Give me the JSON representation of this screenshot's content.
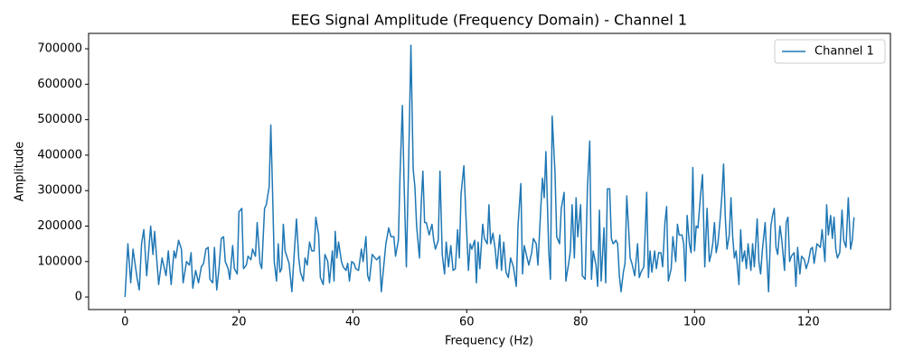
{
  "chart_data": {
    "type": "line",
    "title": "EEG Signal Amplitude (Frequency Domain) - Channel 1",
    "xlabel": "Frequency (Hz)",
    "ylabel": "Amplitude",
    "x": [
      0,
      0.5,
      1.0,
      1.4,
      2.1,
      2.5,
      2.9,
      3.3,
      3.8,
      4.5,
      4.9,
      5.2,
      5.9,
      6.5,
      7.2,
      7.6,
      8.1,
      8.6,
      8.9,
      9.4,
      9.9,
      10.2,
      10.8,
      11.3,
      11.6,
      11.9,
      12.4,
      12.9,
      13.4,
      13.8,
      14.2,
      14.6,
      14.9,
      15.4,
      15.7,
      16.1,
      16.5,
      16.9,
      17.3,
      17.6,
      18.1,
      18.4,
      18.9,
      19.2,
      19.7,
      20.0,
      20.5,
      20.8,
      21.3,
      21.6,
      22.1,
      22.4,
      22.9,
      23.2,
      23.7,
      24.0,
      24.5,
      24.8,
      25.3,
      25.6,
      25.9,
      26.2,
      26.6,
      26.9,
      27.2,
      27.5,
      27.8,
      28.1,
      28.8,
      29.3,
      29.7,
      30.1,
      30.5,
      30.8,
      31.3,
      31.6,
      32.0,
      32.4,
      32.8,
      33.2,
      33.5,
      34.0,
      34.3,
      34.8,
      35.1,
      35.6,
      35.9,
      36.4,
      36.7,
      36.9,
      37.2,
      37.5,
      38.0,
      38.3,
      38.8,
      39.1,
      39.4,
      39.8,
      40.2,
      40.5,
      41.0,
      41.5,
      41.8,
      42.3,
      42.6,
      42.9,
      43.4,
      43.9,
      44.2,
      44.7,
      45.0,
      45.5,
      45.8,
      46.3,
      46.7,
      47.2,
      47.5,
      48.0,
      48.3,
      48.7,
      49.0,
      49.4,
      49.8,
      50.2,
      50.6,
      50.9,
      51.2,
      51.7,
      52.0,
      52.3,
      52.6,
      52.9,
      53.4,
      53.9,
      54.2,
      54.5,
      55.0,
      55.3,
      55.7,
      56.1,
      56.4,
      56.8,
      57.2,
      57.6,
      58.0,
      58.4,
      58.7,
      59.0,
      59.5,
      59.8,
      60.3,
      60.6,
      60.9,
      61.4,
      61.7,
      62.0,
      62.3,
      62.8,
      63.1,
      63.6,
      63.9,
      64.2,
      64.6,
      65.0,
      65.3,
      65.8,
      66.1,
      66.5,
      66.9,
      67.3,
      67.7,
      68.2,
      68.7,
      69.0,
      69.5,
      69.8,
      70.1,
      70.6,
      70.9,
      71.4,
      71.7,
      72.2,
      72.5,
      73.0,
      73.3,
      73.6,
      73.9,
      74.4,
      74.7,
      75.0,
      75.5,
      75.8,
      76.3,
      76.6,
      77.1,
      77.4,
      77.9,
      78.2,
      78.5,
      78.9,
      79.2,
      79.5,
      80.0,
      80.3,
      80.8,
      81.2,
      81.6,
      81.9,
      82.2,
      82.7,
      83.0,
      83.3,
      83.6,
      84.1,
      84.4,
      84.7,
      85.1,
      85.4,
      85.7,
      86.2,
      86.5,
      86.8,
      87.1,
      87.5,
      87.8,
      88.1,
      88.4,
      88.7,
      89.0,
      89.5,
      90.0,
      90.3,
      90.6,
      91.1,
      91.6,
      91.9,
      92.2,
      92.5,
      93.0,
      93.3,
      93.7,
      94.1,
      94.4,
      94.8,
      95.1,
      95.4,
      95.9,
      96.2,
      96.7,
      97.0,
      97.3,
      97.8,
      98.1,
      98.4,
      98.7,
      99.1,
      99.4,
      99.7,
      100.0,
      100.3,
      100.6,
      101.1,
      101.4,
      101.8,
      102.2,
      102.6,
      102.9,
      103.2,
      103.5,
      103.8,
      104.1,
      104.5,
      104.8,
      105.1,
      105.4,
      105.7,
      106.1,
      106.4,
      106.7,
      107.0,
      107.3,
      107.8,
      108.1,
      108.4,
      108.8,
      109.1,
      109.4,
      109.9,
      110.2,
      110.5,
      111.0,
      111.3,
      111.6,
      111.9,
      112.4,
      112.7,
      113.0,
      113.4,
      113.7,
      114.0,
      114.3,
      114.6,
      115.0,
      115.3,
      115.8,
      116.1,
      116.4,
      116.7,
      117.0,
      117.5,
      117.8,
      118.1,
      118.5,
      118.8,
      119.3,
      119.6,
      120.0,
      120.4,
      120.7,
      121.0,
      121.5,
      121.8,
      122.1,
      122.4,
      122.9,
      123.2,
      123.5,
      123.9,
      124.2,
      124.5,
      124.8,
      125.1,
      125.5,
      125.9,
      126.2,
      126.6,
      127.0,
      127.4,
      127.7,
      128.0
    ],
    "series": [
      {
        "name": "Channel 1",
        "color": "#1f77b4",
        "values": [
          0,
          150000,
          40000,
          135000,
          55000,
          20000,
          150000,
          190000,
          60000,
          200000,
          120000,
          185000,
          35000,
          110000,
          60000,
          130000,
          35000,
          130000,
          110000,
          160000,
          135000,
          40000,
          100000,
          90000,
          125000,
          25000,
          75000,
          40000,
          85000,
          95000,
          135000,
          140000,
          50000,
          40000,
          140000,
          20000,
          80000,
          165000,
          170000,
          100000,
          80000,
          50000,
          145000,
          80000,
          65000,
          240000,
          250000,
          80000,
          90000,
          115000,
          105000,
          135000,
          115000,
          210000,
          95000,
          80000,
          250000,
          260000,
          310000,
          485000,
          300000,
          100000,
          45000,
          150000,
          70000,
          80000,
          205000,
          130000,
          95000,
          15000,
          120000,
          220000,
          110000,
          70000,
          45000,
          110000,
          90000,
          155000,
          130000,
          130000,
          225000,
          175000,
          55000,
          35000,
          120000,
          100000,
          40000,
          130000,
          45000,
          185000,
          110000,
          155000,
          100000,
          85000,
          75000,
          95000,
          45000,
          100000,
          95000,
          80000,
          75000,
          135000,
          100000,
          170000,
          60000,
          45000,
          120000,
          110000,
          105000,
          115000,
          15000,
          100000,
          150000,
          195000,
          170000,
          170000,
          115000,
          160000,
          350000,
          540000,
          320000,
          85000,
          380000,
          710000,
          360000,
          310000,
          200000,
          110000,
          260000,
          355000,
          210000,
          210000,
          175000,
          205000,
          160000,
          135000,
          160000,
          355000,
          120000,
          65000,
          155000,
          85000,
          145000,
          75000,
          80000,
          190000,
          110000,
          290000,
          370000,
          250000,
          75000,
          150000,
          135000,
          160000,
          40000,
          155000,
          80000,
          205000,
          165000,
          150000,
          260000,
          150000,
          180000,
          135000,
          80000,
          175000,
          75000,
          155000,
          70000,
          55000,
          110000,
          85000,
          30000,
          200000,
          320000,
          65000,
          145000,
          110000,
          90000,
          125000,
          165000,
          150000,
          90000,
          250000,
          335000,
          280000,
          410000,
          130000,
          50000,
          510000,
          350000,
          170000,
          150000,
          250000,
          295000,
          45000,
          95000,
          130000,
          260000,
          110000,
          280000,
          170000,
          260000,
          60000,
          50000,
          310000,
          440000,
          50000,
          130000,
          90000,
          30000,
          245000,
          45000,
          195000,
          40000,
          305000,
          305000,
          165000,
          150000,
          160000,
          150000,
          60000,
          15000,
          70000,
          95000,
          285000,
          200000,
          110000,
          95000,
          60000,
          150000,
          55000,
          70000,
          85000,
          295000,
          55000,
          130000,
          70000,
          130000,
          80000,
          125000,
          125000,
          85000,
          210000,
          255000,
          45000,
          80000,
          170000,
          100000,
          205000,
          175000,
          175000,
          150000,
          45000,
          230000,
          150000,
          125000,
          365000,
          130000,
          200000,
          195000,
          295000,
          345000,
          85000,
          250000,
          100000,
          120000,
          150000,
          210000,
          125000,
          150000,
          220000,
          285000,
          375000,
          225000,
          135000,
          175000,
          280000,
          170000,
          110000,
          130000,
          35000,
          190000,
          100000,
          130000,
          80000,
          150000,
          75000,
          150000,
          85000,
          220000,
          100000,
          65000,
          130000,
          210000,
          110000,
          15000,
          200000,
          230000,
          250000,
          140000,
          120000,
          200000,
          165000,
          75000,
          210000,
          225000,
          100000,
          115000,
          125000,
          30000,
          140000,
          65000,
          115000,
          105000,
          80000,
          100000,
          135000,
          140000,
          95000,
          150000,
          145000,
          140000,
          190000,
          100000,
          260000,
          175000,
          230000,
          165000,
          225000,
          135000,
          110000,
          125000,
          245000,
          160000,
          140000,
          280000,
          135000,
          160000,
          225000
        ]
      }
    ],
    "xlim": [
      -6.4,
      134.4
    ],
    "ylim": [
      -35400,
      743400
    ],
    "xticks": [
      0,
      20,
      40,
      60,
      80,
      100,
      120
    ],
    "yticks": [
      0,
      100000,
      200000,
      300000,
      400000,
      500000,
      600000,
      700000
    ],
    "grid": false,
    "legend": "upper right"
  }
}
